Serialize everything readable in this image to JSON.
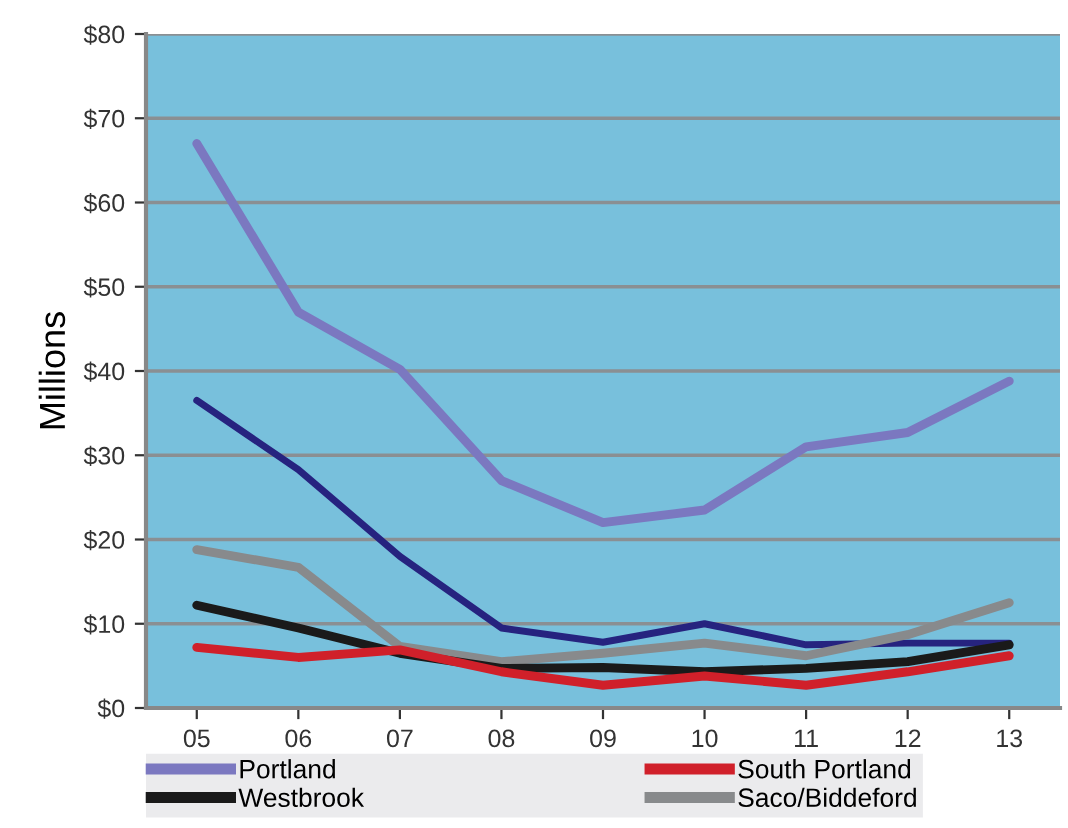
{
  "chart_data": {
    "type": "line",
    "ylabel": "Millions",
    "categories": [
      "05",
      "06",
      "07",
      "08",
      "09",
      "10",
      "11",
      "12",
      "13"
    ],
    "series": [
      {
        "name": "Portland",
        "color": "#7b78c0",
        "values": [
          67,
          47,
          40.2,
          27,
          22,
          23.5,
          31,
          32.7,
          38.8
        ]
      },
      {
        "color": "#26237f",
        "values": [
          36.5,
          28.3,
          18,
          9.5,
          7.8,
          10,
          7.5,
          7.7,
          7.7
        ]
      },
      {
        "name": "Saco/Biddeford",
        "color": "#888a8c",
        "values": [
          18.8,
          16.7,
          7.3,
          5.5,
          6.5,
          7.7,
          6.2,
          8.7,
          12.5
        ]
      },
      {
        "name": "Westbrook",
        "color": "#1a1a1a",
        "values": [
          12.2,
          9.5,
          6.5,
          4.7,
          4.8,
          4.3,
          4.7,
          5.5,
          7.5
        ]
      },
      {
        "name": "South Portland",
        "color": "#d0202a",
        "values": [
          7.2,
          6,
          6.9,
          4.3,
          2.7,
          3.8,
          2.7,
          4.3,
          6.2
        ]
      }
    ],
    "ylim": [
      0,
      80
    ],
    "yticks": [
      {
        "value": 0,
        "label": "$0"
      },
      {
        "value": 10,
        "label": "$10"
      },
      {
        "value": 20,
        "label": "$20"
      },
      {
        "value": 30,
        "label": "$30"
      },
      {
        "value": 40,
        "label": "$40"
      },
      {
        "value": 50,
        "label": "$50"
      },
      {
        "value": 60,
        "label": "$60"
      },
      {
        "value": 70,
        "label": "$70"
      },
      {
        "value": 80,
        "label": "$80"
      }
    ],
    "grid": "y",
    "legend": "bottom",
    "marker": "none",
    "line_style": "solid"
  }
}
